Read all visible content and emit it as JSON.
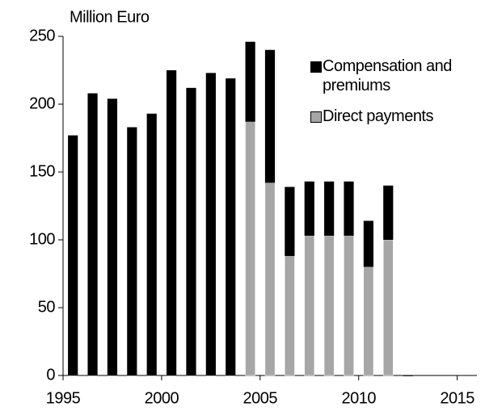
{
  "chart_data": {
    "type": "bar",
    "stacked": true,
    "y_label": "Million Euro",
    "x": [
      1995,
      1996,
      1997,
      1998,
      1999,
      2000,
      2001,
      2002,
      2003,
      2004,
      2005,
      2006,
      2007,
      2008,
      2009,
      2010,
      2011,
      2012
    ],
    "series": [
      {
        "name": "Direct payments",
        "color": "#a6a6a6",
        "values": [
          0,
          0,
          0,
          0,
          0,
          0,
          0,
          0,
          0,
          187,
          142,
          88,
          103,
          103,
          103,
          80,
          100,
          0
        ]
      },
      {
        "name": "Compensation and premiums",
        "color": "#000000",
        "values": [
          177,
          208,
          204,
          183,
          193,
          225,
          212,
          223,
          219,
          59,
          98,
          51,
          40,
          40,
          40,
          34,
          40,
          0
        ]
      }
    ],
    "xlim": [
      1995,
      2016
    ],
    "xticks": [
      1995,
      2000,
      2005,
      2010,
      2015
    ],
    "ylim": [
      0,
      250
    ],
    "yticks": [
      0,
      50,
      100,
      150,
      200,
      250
    ],
    "grid": false
  }
}
